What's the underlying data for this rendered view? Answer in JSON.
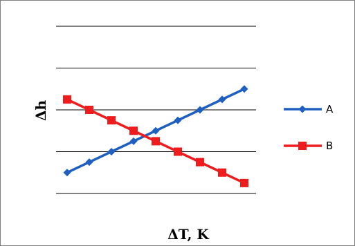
{
  "chart_data": {
    "type": "line",
    "title": "",
    "xlabel": "ΔT, K",
    "ylabel": "Δh",
    "x": [
      1,
      2,
      3,
      4,
      5,
      6,
      7,
      8,
      9
    ],
    "ylim": [
      0,
      4
    ],
    "yticks": [
      0,
      1,
      2,
      3,
      4
    ],
    "grid": "horizontal",
    "legend_position": "right",
    "series": [
      {
        "name": "A",
        "color": "#1f5fbf",
        "marker": "diamond",
        "values": [
          0.5,
          0.75,
          1.0,
          1.25,
          1.5,
          1.75,
          2.0,
          2.25,
          2.5
        ]
      },
      {
        "name": "B",
        "color": "#ee1c1c",
        "marker": "square",
        "values": [
          2.25,
          2.0,
          1.75,
          1.5,
          1.25,
          1.0,
          0.75,
          0.5,
          0.25
        ]
      }
    ]
  }
}
